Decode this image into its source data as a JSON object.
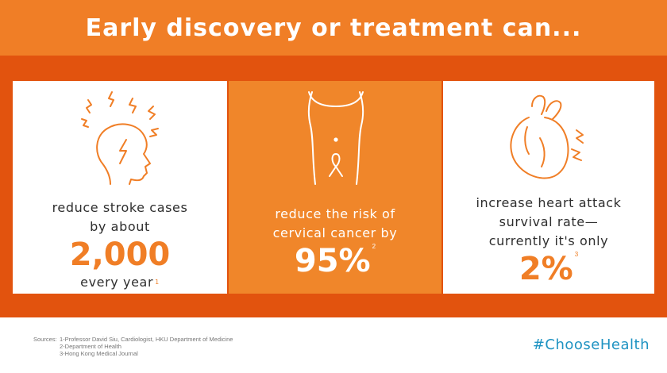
{
  "header": {
    "title": "Early discovery or treatment can..."
  },
  "cards": [
    {
      "lines": [
        "reduce stroke cases",
        "by about"
      ],
      "value": "2,000",
      "after": "every year",
      "ref": "1"
    },
    {
      "lines": [
        "reduce the risk of",
        "cervical cancer by"
      ],
      "value": "95%",
      "ref": "2"
    },
    {
      "lines": [
        "increase heart attack",
        "survival rate—",
        "currently it's only"
      ],
      "value": "2%",
      "ref": "3"
    }
  ],
  "icons": [
    "stroke-head-icon",
    "cervical-ribbon-icon",
    "heart-attack-icon"
  ],
  "footer": {
    "sources_label": "Sources:",
    "sources": [
      "1-Professor David Siu, Cardiologist, HKU Department of Medicine",
      "2-Department of Health",
      "3-Hong Kong Medical Journal"
    ],
    "hashtag": "#ChooseHealth"
  },
  "colors": {
    "accent": "#f07e26",
    "band": "#e2530e",
    "card_orange": "#f0862a",
    "hashtag": "#1f93c2"
  }
}
